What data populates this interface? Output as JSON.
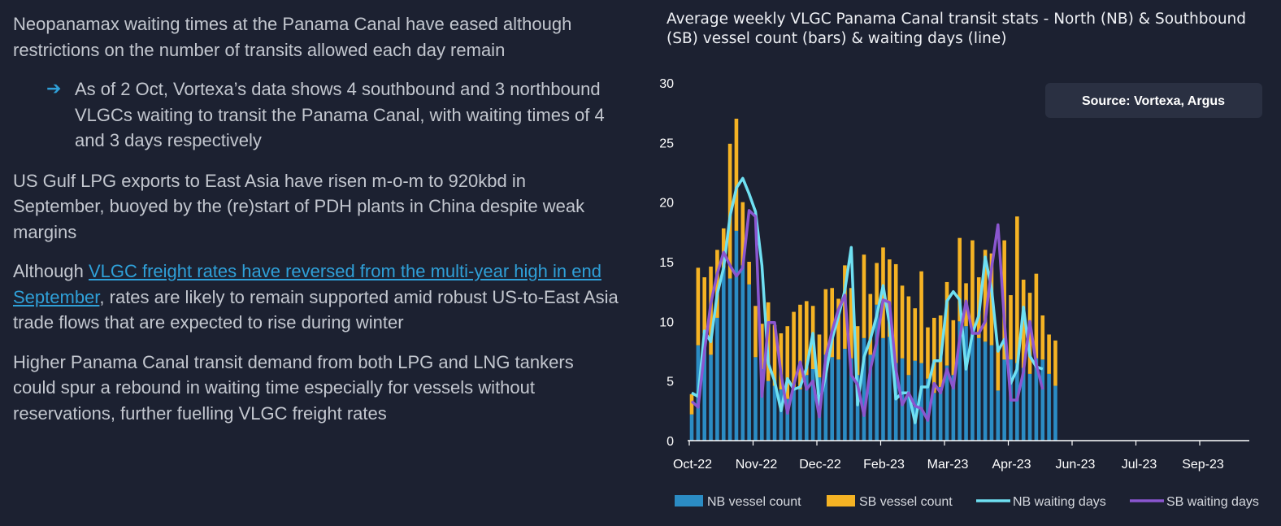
{
  "text": {
    "p1": "Neopanamax waiting times at the Panama Canal have eased although restrictions on the number of transits allowed each day remain",
    "bullet_icon": "arrow-right-icon",
    "b1": "As of 2 Oct, Vortexa’s data shows 4 southbound and 3 northbound VLGCs waiting to transit the Panama Canal, with waiting times of 4 and 3 days respectively",
    "p2": "US Gulf LPG exports to East Asia have risen m-o-m to 920kbd in September, buoyed by the (re)start of PDH plants in China despite weak margins",
    "p3_prefix": "Although ",
    "p3_link": "VLGC freight rates have reversed from the multi-year high in end September",
    "p3_suffix": ", rates are likely to remain supported amid robust US-to-East Asia trade flows that are expected to rise during winter",
    "p4": "Higher Panama Canal transit demand from both LPG and LNG tankers could spur a rebound in waiting time especially for vessels without reservations, further fuelling VLGC freight rates"
  },
  "chart_data": {
    "type": "bar",
    "title": "Average weekly VLGC Panama Canal transit stats - North (NB) & Southbound (SB) vessel count (bars) & waiting days (line)",
    "source": "Source: Vortexa, Argus",
    "x_tick_labels": [
      "Oct-22",
      "Nov-22",
      "Dec-22",
      "Feb-23",
      "Mar-23",
      "Apr-23",
      "Jun-23",
      "Jul-23",
      "Sep-23"
    ],
    "x_tick_week_index": [
      0,
      10,
      20,
      30,
      40,
      50,
      60,
      70,
      80
    ],
    "y_ticks": [
      0,
      5,
      10,
      15,
      20,
      25,
      30
    ],
    "ylim": [
      0,
      30
    ],
    "legend_position": "bottom",
    "colors": {
      "nb_bar": "#2b8cc4",
      "sb_bar": "#f5b324",
      "nb_line": "#6fe0f2",
      "sb_line": "#8a56cf"
    },
    "series": [
      {
        "name": "NB vessel count",
        "kind": "bar",
        "values": [
          2.2,
          8,
          9,
          7.2,
          10.3,
          14.5,
          13.6,
          17.6,
          14.7,
          13.1,
          7,
          6,
          5,
          4.6,
          4.3,
          3.5,
          4.5,
          4.3,
          5.5,
          6,
          5.3,
          7.2,
          7,
          6.8,
          7.7,
          6.9,
          5.5,
          8.6,
          7.2,
          11.4,
          8.6,
          8.7,
          6.5,
          6.9,
          5.5,
          6.7,
          6.5,
          5.2,
          4,
          4.5,
          6.3,
          5.5,
          10,
          9.6,
          9.2,
          8.6,
          8.3,
          8,
          4.2,
          6.8,
          6.8,
          6.5,
          6.1,
          5.6,
          6.9,
          6.8,
          5.6,
          4.6
        ]
      },
      {
        "name": "SB vessel count",
        "kind": "bar",
        "values": [
          1.7,
          6.5,
          4.7,
          7.4,
          5.7,
          3.3,
          11.3,
          9.4,
          5.3,
          1.9,
          4.3,
          3.8,
          6.6,
          5.1,
          4.7,
          6.1,
          6.3,
          7.1,
          6.2,
          5.3,
          3.6,
          5.5,
          5.8,
          5.1,
          7,
          5.9,
          4.1,
          7,
          5.1,
          3.5,
          7.6,
          6.5,
          8.3,
          6.1,
          6.6,
          4.4,
          7.7,
          4.3,
          6.3,
          6,
          7,
          4.6,
          7,
          3.6,
          7.6,
          5.1,
          7.7,
          7.7,
          3.7,
          10,
          5.4,
          12.3,
          7.4,
          6.8,
          7.1,
          3.7,
          3.3,
          3.8
        ]
      },
      {
        "name": "NB waiting days",
        "kind": "line",
        "values": [
          4,
          3.7,
          9.2,
          8.3,
          12.3,
          14.5,
          18.8,
          21.2,
          22,
          20.7,
          19.2,
          14.7,
          6.5,
          5,
          2.5,
          5.2,
          4.3,
          4.5,
          6.1,
          9,
          3,
          5.5,
          8.5,
          10.4,
          12.6,
          16.2,
          3,
          7,
          8.5,
          10.5,
          13,
          9.8,
          3.5,
          4,
          4,
          1.5,
          4.5,
          4.5,
          6.7,
          6.7,
          11.7,
          12.5,
          11.8,
          6,
          9,
          10.5,
          15.4,
          12.7,
          7.5,
          8.5,
          4.8,
          6,
          11.2,
          7.1,
          6.2,
          6
        ]
      },
      {
        "name": "SB waiting days",
        "kind": "line",
        "values": [
          3.3,
          2.8,
          7.5,
          11.5,
          14,
          15.8,
          14.7,
          13.8,
          14.5,
          19.3,
          18.8,
          3.7,
          9.9,
          9.9,
          5.6,
          2.3,
          4.7,
          6.6,
          4.3,
          5,
          2,
          7,
          9.2,
          11,
          12.2,
          5.5,
          4.7,
          2.1,
          6,
          8.3,
          11.8,
          11.6,
          6,
          3,
          4,
          2.9,
          2.7,
          1.7,
          4.8,
          4,
          6,
          4.4,
          8.6,
          11.7,
          9,
          9,
          10,
          14.5,
          18.1,
          10,
          3.4,
          3.4,
          5.8,
          10,
          6.4,
          4.3
        ]
      }
    ]
  }
}
